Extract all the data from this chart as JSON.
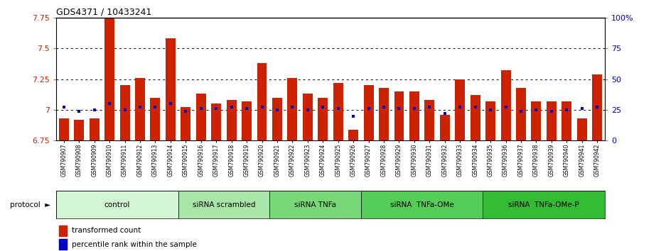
{
  "title": "GDS4371 / 10433241",
  "samples": [
    "GSM790907",
    "GSM790908",
    "GSM790909",
    "GSM790910",
    "GSM790911",
    "GSM790912",
    "GSM790913",
    "GSM790914",
    "GSM790915",
    "GSM790916",
    "GSM790917",
    "GSM790918",
    "GSM790919",
    "GSM790920",
    "GSM790921",
    "GSM790922",
    "GSM790923",
    "GSM790924",
    "GSM790925",
    "GSM790926",
    "GSM790927",
    "GSM790928",
    "GSM790929",
    "GSM790930",
    "GSM790931",
    "GSM790932",
    "GSM790933",
    "GSM790934",
    "GSM790935",
    "GSM790936",
    "GSM790937",
    "GSM790938",
    "GSM790939",
    "GSM790940",
    "GSM790941",
    "GSM790942"
  ],
  "red_values": [
    6.93,
    6.92,
    6.93,
    7.76,
    7.2,
    7.26,
    7.1,
    7.58,
    7.02,
    7.13,
    7.05,
    7.08,
    7.07,
    7.38,
    7.1,
    7.26,
    7.13,
    7.1,
    7.22,
    6.84,
    7.2,
    7.18,
    7.15,
    7.15,
    7.08,
    6.96,
    7.25,
    7.12,
    7.07,
    7.32,
    7.18,
    7.07,
    7.07,
    7.07,
    6.93,
    7.29
  ],
  "blue_values": [
    27,
    24,
    25,
    30,
    25,
    27,
    27,
    30,
    24,
    26,
    26,
    27,
    26,
    27,
    25,
    27,
    25,
    27,
    26,
    20,
    26,
    27,
    26,
    26,
    27,
    22,
    27,
    27,
    25,
    27,
    24,
    25,
    24,
    25,
    26,
    27
  ],
  "ymin": 6.75,
  "ymax": 7.75,
  "yticks": [
    6.75,
    7.0,
    7.25,
    7.5,
    7.75
  ],
  "ytick_labels": [
    "6.75",
    "7",
    "7.25",
    "7.5",
    "7.75"
  ],
  "y2min": 0,
  "y2max": 100,
  "y2ticks": [
    0,
    25,
    50,
    75,
    100
  ],
  "y2tick_labels": [
    "0",
    "25",
    "50",
    "75",
    "100%"
  ],
  "groups": [
    {
      "label": "control",
      "start": 0,
      "end": 8,
      "color": "#d4f5d4"
    },
    {
      "label": "siRNA scrambled",
      "start": 8,
      "end": 14,
      "color": "#a8e6a8"
    },
    {
      "label": "siRNA TNFa",
      "start": 14,
      "end": 20,
      "color": "#78d878"
    },
    {
      "label": "siRNA  TNFa-OMe",
      "start": 20,
      "end": 28,
      "color": "#55cc55"
    },
    {
      "label": "siRNA  TNFa-OMe-P",
      "start": 28,
      "end": 36,
      "color": "#33bb33"
    }
  ],
  "bar_color": "#cc2200",
  "blue_color": "#0000cc",
  "legend_red": "transformed count",
  "legend_blue": "percentile rank within the sample",
  "protocol_label": "protocol"
}
